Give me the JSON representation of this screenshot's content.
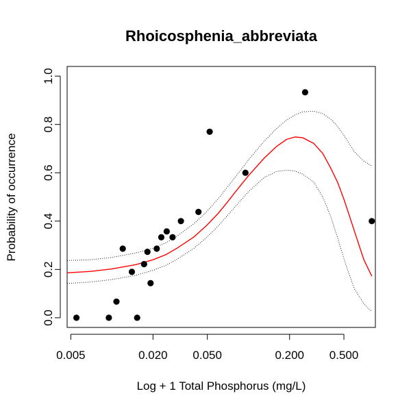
{
  "chart_data": {
    "type": "scatter",
    "title": "Rhoicosphenia_abbreviata",
    "xlabel": "Log + 1 Total Phosphorus (mg/L)",
    "ylabel": "Probability of occurrence",
    "x_scale": "log",
    "xlim": [
      0.0047,
      0.85
    ],
    "ylim": [
      -0.04,
      1.04
    ],
    "x_ticks": [
      0.005,
      0.02,
      0.05,
      0.2,
      0.5
    ],
    "x_tick_labels": [
      "0.005",
      "0.020",
      "0.050",
      "0.200",
      "0.500"
    ],
    "y_ticks": [
      0.0,
      0.2,
      0.4,
      0.6,
      0.8,
      1.0
    ],
    "y_tick_labels": [
      "0.0",
      "0.2",
      "0.4",
      "0.6",
      "0.8",
      "1.0"
    ],
    "grid": false,
    "series": [
      {
        "kind": "points",
        "color": "#000000",
        "points": [
          [
            0.0055,
            0.0
          ],
          [
            0.0095,
            0.0
          ],
          [
            0.0108,
            0.067
          ],
          [
            0.012,
            0.286
          ],
          [
            0.014,
            0.19
          ],
          [
            0.0153,
            0.0
          ],
          [
            0.0172,
            0.222
          ],
          [
            0.0182,
            0.273
          ],
          [
            0.0192,
            0.143
          ],
          [
            0.0213,
            0.286
          ],
          [
            0.023,
            0.333
          ],
          [
            0.0252,
            0.357
          ],
          [
            0.0278,
            0.333
          ],
          [
            0.032,
            0.4
          ],
          [
            0.043,
            0.438
          ],
          [
            0.052,
            0.77
          ],
          [
            0.095,
            0.6
          ],
          [
            0.26,
            0.933
          ],
          [
            0.8,
            0.4
          ]
        ]
      },
      {
        "kind": "line",
        "color": "#ff0000",
        "dash": "solid",
        "points": [
          [
            0.0047,
            0.186
          ],
          [
            0.007,
            0.192
          ],
          [
            0.01,
            0.202
          ],
          [
            0.015,
            0.22
          ],
          [
            0.02,
            0.24
          ],
          [
            0.025,
            0.262
          ],
          [
            0.03,
            0.288
          ],
          [
            0.04,
            0.335
          ],
          [
            0.05,
            0.385
          ],
          [
            0.06,
            0.432
          ],
          [
            0.07,
            0.478
          ],
          [
            0.08,
            0.52
          ],
          [
            0.1,
            0.588
          ],
          [
            0.13,
            0.66
          ],
          [
            0.16,
            0.708
          ],
          [
            0.19,
            0.738
          ],
          [
            0.22,
            0.748
          ],
          [
            0.25,
            0.745
          ],
          [
            0.3,
            0.722
          ],
          [
            0.35,
            0.68
          ],
          [
            0.4,
            0.62
          ],
          [
            0.45,
            0.56
          ],
          [
            0.5,
            0.49
          ],
          [
            0.55,
            0.42
          ],
          [
            0.6,
            0.355
          ],
          [
            0.7,
            0.24
          ],
          [
            0.8,
            0.172
          ]
        ]
      },
      {
        "kind": "line",
        "color": "#000000",
        "dash": "dotted",
        "points": [
          [
            0.0047,
            0.237
          ],
          [
            0.007,
            0.24
          ],
          [
            0.01,
            0.25
          ],
          [
            0.015,
            0.268
          ],
          [
            0.02,
            0.288
          ],
          [
            0.025,
            0.311
          ],
          [
            0.03,
            0.338
          ],
          [
            0.04,
            0.39
          ],
          [
            0.05,
            0.442
          ],
          [
            0.06,
            0.492
          ],
          [
            0.07,
            0.54
          ],
          [
            0.08,
            0.582
          ],
          [
            0.1,
            0.653
          ],
          [
            0.13,
            0.73
          ],
          [
            0.16,
            0.782
          ],
          [
            0.19,
            0.818
          ],
          [
            0.22,
            0.84
          ],
          [
            0.25,
            0.852
          ],
          [
            0.3,
            0.855
          ],
          [
            0.35,
            0.845
          ],
          [
            0.4,
            0.822
          ],
          [
            0.45,
            0.792
          ],
          [
            0.5,
            0.755
          ],
          [
            0.55,
            0.718
          ],
          [
            0.6,
            0.685
          ],
          [
            0.7,
            0.648
          ],
          [
            0.8,
            0.628
          ]
        ]
      },
      {
        "kind": "line",
        "color": "#000000",
        "dash": "dotted",
        "points": [
          [
            0.0047,
            0.142
          ],
          [
            0.007,
            0.148
          ],
          [
            0.01,
            0.158
          ],
          [
            0.015,
            0.176
          ],
          [
            0.02,
            0.196
          ],
          [
            0.025,
            0.218
          ],
          [
            0.03,
            0.242
          ],
          [
            0.04,
            0.288
          ],
          [
            0.05,
            0.335
          ],
          [
            0.06,
            0.38
          ],
          [
            0.07,
            0.422
          ],
          [
            0.08,
            0.46
          ],
          [
            0.1,
            0.522
          ],
          [
            0.13,
            0.58
          ],
          [
            0.16,
            0.605
          ],
          [
            0.19,
            0.611
          ],
          [
            0.22,
            0.607
          ],
          [
            0.25,
            0.594
          ],
          [
            0.3,
            0.562
          ],
          [
            0.35,
            0.5
          ],
          [
            0.4,
            0.42
          ],
          [
            0.45,
            0.33
          ],
          [
            0.5,
            0.245
          ],
          [
            0.55,
            0.175
          ],
          [
            0.6,
            0.118
          ],
          [
            0.7,
            0.058
          ],
          [
            0.8,
            0.025
          ]
        ]
      }
    ]
  }
}
